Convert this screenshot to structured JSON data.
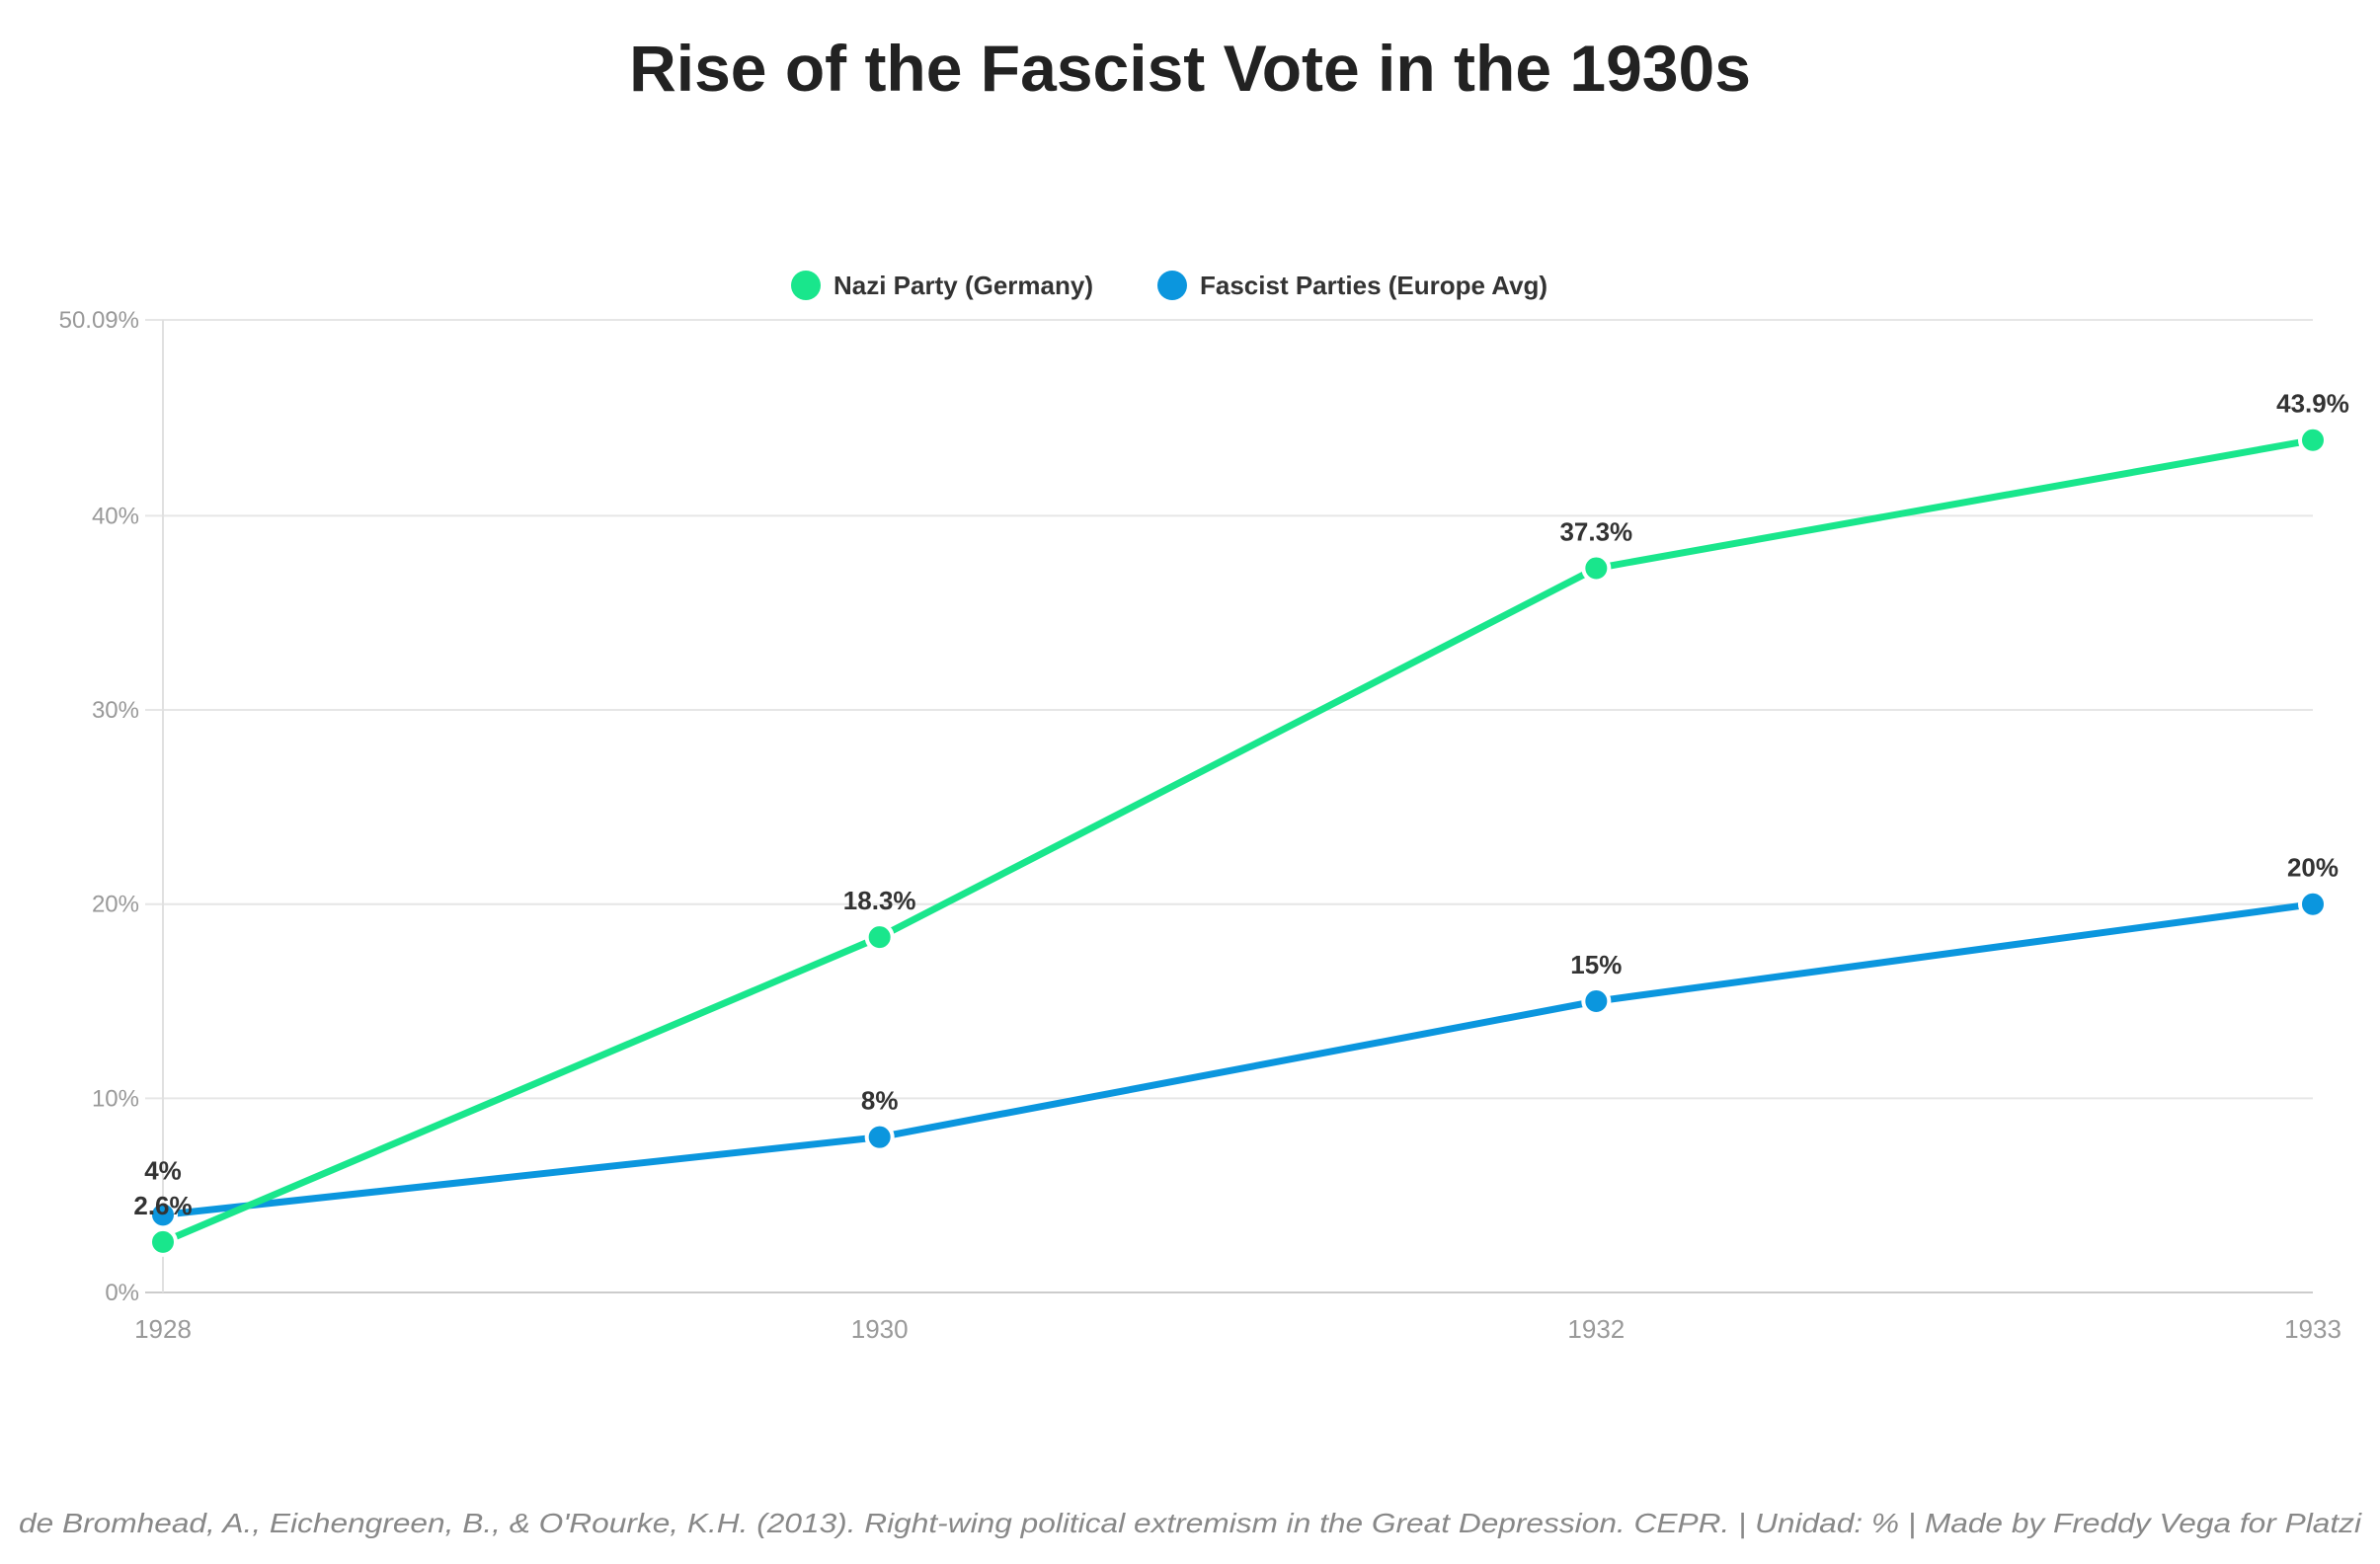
{
  "chart_data": {
    "type": "line",
    "title": "Rise of the Fascist Vote in the 1930s",
    "categories": [
      "1928",
      "1930",
      "1932",
      "1933"
    ],
    "series": [
      {
        "name": "Nazi Party (Germany)",
        "color": "#19e68c",
        "values": [
          2.6,
          18.3,
          37.3,
          43.9
        ],
        "labels": [
          "2.6%",
          "18.3%",
          "37.3%",
          "43.9%"
        ]
      },
      {
        "name": "Fascist Parties (Europe Avg)",
        "color": "#0b96de",
        "values": [
          4,
          8,
          15,
          20
        ],
        "labels": [
          "4%",
          "8%",
          "15%",
          "20%"
        ]
      }
    ],
    "ylim": [
      0,
      50.09
    ],
    "yticks": [
      0,
      10,
      20,
      30,
      40,
      50.09
    ],
    "ytick_labels": [
      "0%",
      "10%",
      "20%",
      "30%",
      "40%",
      "50.09%"
    ],
    "xlabel": "",
    "ylabel": "",
    "grid": true,
    "legend_position": "top-center",
    "footer": "de Bromhead, A., Eichengreen, B., & O'Rourke, K.H. (2013). Right-wing political extremism in the Great Depression. CEPR. | Unidad: % | Made by Freddy Vega for Platzi"
  }
}
